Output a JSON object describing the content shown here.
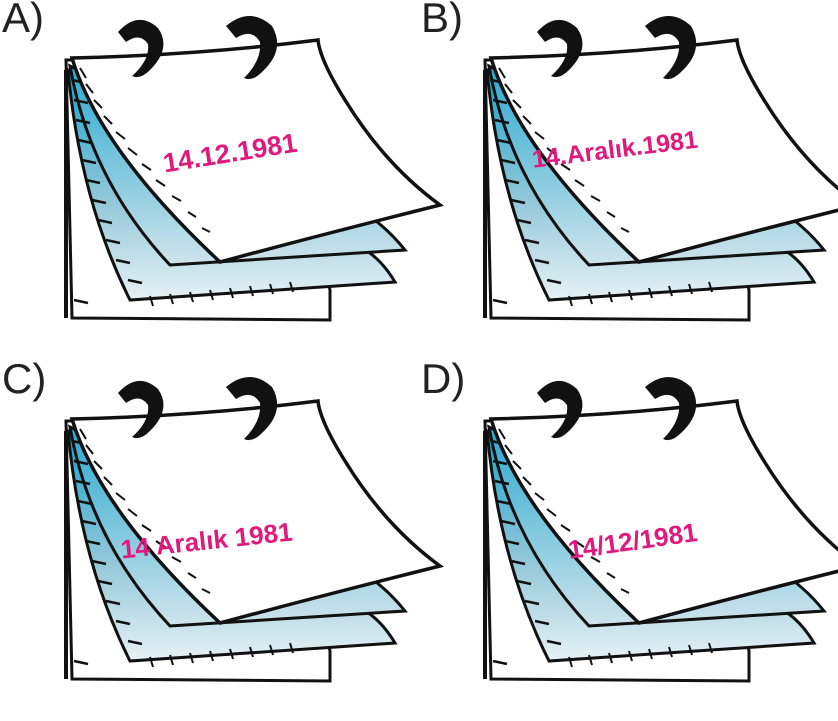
{
  "options": [
    {
      "letter": "A)",
      "date": "14.12.1981"
    },
    {
      "letter": "B)",
      "date": "14.Aralık.1981"
    },
    {
      "letter": "C)",
      "date": "14 Aralık 1981"
    },
    {
      "letter": "D)",
      "date": "14/12/1981"
    }
  ],
  "colors": {
    "date_text": "#e0197d",
    "ink": "#111111",
    "page_blue_dark": "#1aa3cc",
    "page_blue_light": "#dfeef3"
  },
  "icons": [
    "tear-off-calendar-icon",
    "binder-ring-icon"
  ]
}
